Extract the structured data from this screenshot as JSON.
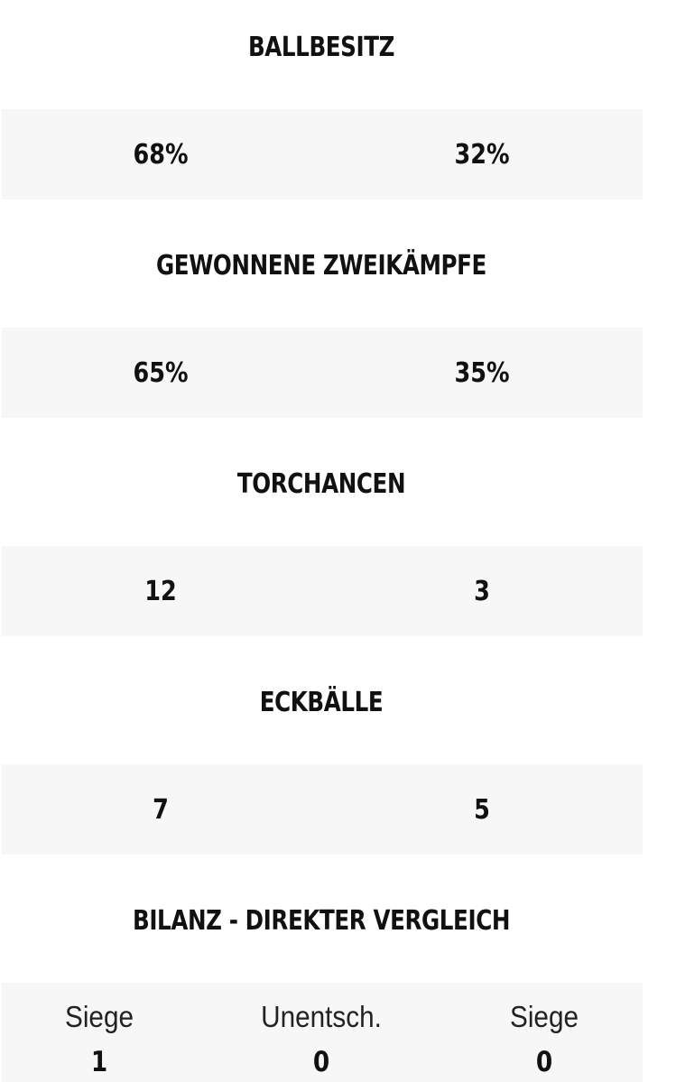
{
  "stats": [
    {
      "title": "BALLBESITZ",
      "home": "68%",
      "away": "32%"
    },
    {
      "title": "GEWONNENE ZWEIKÄMPFE",
      "home": "65%",
      "away": "35%"
    },
    {
      "title": "TORCHANCEN",
      "home": "12",
      "away": "3"
    },
    {
      "title": "ECKBÄLLE",
      "home": "7",
      "away": "5"
    }
  ],
  "bilanz": {
    "title": "BILANZ - DIREKTER VERGLEICH",
    "home_label": "Siege",
    "home_value": "1",
    "draw_label": "Unentsch.",
    "draw_value": "0",
    "away_label": "Siege",
    "away_value": "0"
  }
}
